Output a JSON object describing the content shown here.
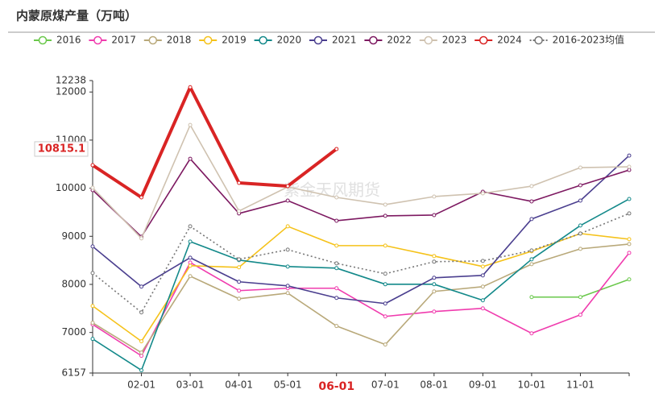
{
  "chart_data": {
    "type": "line",
    "title": "内蒙原煤产量（万吨）",
    "watermark": "紫金天风期货",
    "categories": [
      null,
      "02-01",
      "03-01",
      "04-01",
      "05-01",
      "06-01",
      "07-01",
      "08-01",
      "09-01",
      "10-01",
      "11-01",
      null
    ],
    "ylim": [
      6157,
      12238
    ],
    "yticks": [
      6157,
      7000,
      8000,
      9000,
      10000,
      11000,
      12000,
      12238
    ],
    "grid": false,
    "legend": "top",
    "axis_pointer": {
      "value": 10815.1,
      "index": 5
    },
    "series": [
      {
        "name": "2016",
        "color": "#6ac84b",
        "values": [
          null,
          null,
          null,
          null,
          null,
          null,
          null,
          null,
          null,
          7736,
          7736,
          8104
        ]
      },
      {
        "name": "2017",
        "color": "#f03cae",
        "values": [
          7167,
          6515,
          8455,
          7870,
          7920,
          7920,
          7334,
          7435,
          7502,
          6983,
          7368,
          8656
        ]
      },
      {
        "name": "2018",
        "color": "#b9a97a",
        "values": [
          7201,
          6582,
          8171,
          7702,
          7819,
          7134,
          6749,
          7853,
          7953,
          8421,
          8739,
          8839
        ]
      },
      {
        "name": "2019",
        "color": "#f5c21a",
        "values": [
          7552,
          6816,
          8388,
          8355,
          9207,
          8806,
          8806,
          8589,
          8371,
          8689,
          9057,
          8940
        ]
      },
      {
        "name": "2020",
        "color": "#13898a",
        "values": [
          6866,
          6214,
          8890,
          8505,
          8371,
          8338,
          8003,
          8003,
          7669,
          8522,
          9224,
          9776
        ]
      },
      {
        "name": "2021",
        "color": "#4b3f8f",
        "values": [
          8789,
          7953,
          8555,
          8054,
          7970,
          7719,
          7602,
          8137,
          8187,
          9358,
          9742,
          10679
        ]
      },
      {
        "name": "2022",
        "color": "#7d1961",
        "values": [
          9960,
          8990,
          10612,
          9475,
          9742,
          9324,
          9425,
          9441,
          9926,
          9726,
          10060,
          10378
        ]
      },
      {
        "name": "2023",
        "color": "#cfc2b0",
        "values": [
          10010,
          8957,
          11314,
          9525,
          10027,
          9809,
          9659,
          9826,
          9893,
          10043,
          10428,
          10445
        ]
      },
      {
        "name": "2024",
        "color": "#d92424",
        "width": 4,
        "values": [
          10478,
          9809,
          12100,
          10110,
          10043,
          10815.1,
          null,
          null,
          null,
          null,
          null,
          null
        ]
      },
      {
        "name": "2016-2023均值",
        "color": "#777777",
        "dash": true,
        "values": [
          8237,
          7418,
          9207,
          8522,
          8722,
          8438,
          8221,
          8472,
          8488,
          8706,
          9057,
          9475
        ]
      }
    ]
  }
}
